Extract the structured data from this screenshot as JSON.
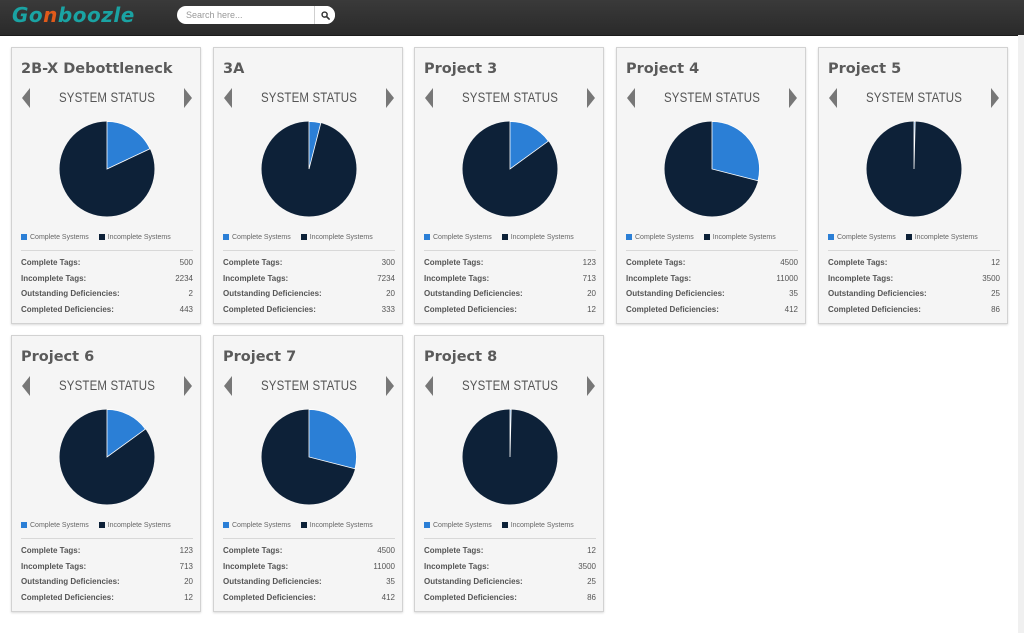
{
  "header": {
    "logo_text": "Gonboozle",
    "search": {
      "placeholder": "Search here...",
      "value": ""
    }
  },
  "colors": {
    "complete": "#2b7fd6",
    "incomplete": "#0d2138",
    "accent": "#1aa3a3"
  },
  "status_label": "SYSTEM STATUS",
  "legend": {
    "complete": "Complete Systems",
    "incomplete": "Incomplete Systems"
  },
  "stat_labels": {
    "complete_tags": "Complete Tags:",
    "incomplete_tags": "Incomplete Tags:",
    "outstanding_deficiencies": "Outstanding Deficiencies:",
    "completed_deficiencies": "Completed Deficiencies:"
  },
  "projects": [
    {
      "title": "2B-X Debottleneck",
      "complete_fraction": 0.18,
      "complete_tags": "500",
      "incomplete_tags": "2234",
      "outstanding_deficiencies": "2",
      "completed_deficiencies": "443"
    },
    {
      "title": "3A",
      "complete_fraction": 0.04,
      "complete_tags": "300",
      "incomplete_tags": "7234",
      "outstanding_deficiencies": "20",
      "completed_deficiencies": "333"
    },
    {
      "title": "Project 3",
      "complete_fraction": 0.15,
      "complete_tags": "123",
      "incomplete_tags": "713",
      "outstanding_deficiencies": "20",
      "completed_deficiencies": "12"
    },
    {
      "title": "Project 4",
      "complete_fraction": 0.29,
      "complete_tags": "4500",
      "incomplete_tags": "11000",
      "outstanding_deficiencies": "35",
      "completed_deficiencies": "412"
    },
    {
      "title": "Project 5",
      "complete_fraction": 0.004,
      "complete_tags": "12",
      "incomplete_tags": "3500",
      "outstanding_deficiencies": "25",
      "completed_deficiencies": "86"
    },
    {
      "title": "Project 6",
      "complete_fraction": 0.15,
      "complete_tags": "123",
      "incomplete_tags": "713",
      "outstanding_deficiencies": "20",
      "completed_deficiencies": "12"
    },
    {
      "title": "Project 7",
      "complete_fraction": 0.29,
      "complete_tags": "4500",
      "incomplete_tags": "11000",
      "outstanding_deficiencies": "35",
      "completed_deficiencies": "412"
    },
    {
      "title": "Project 8",
      "complete_fraction": 0.004,
      "complete_tags": "12",
      "incomplete_tags": "3500",
      "outstanding_deficiencies": "25",
      "completed_deficiencies": "86"
    }
  ]
}
